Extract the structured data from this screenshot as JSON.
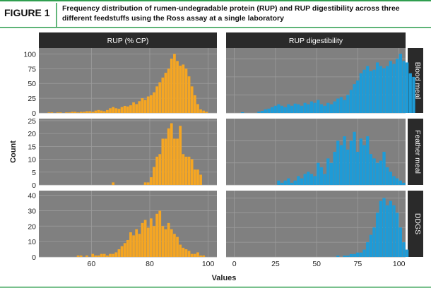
{
  "header": {
    "figure_label": "FIGURE 1",
    "caption_line1": "Frequency distribution of rumen-undegradable protein (RUP) and RUP digestibility across three",
    "caption_line2": "different feedstuffs using the Ross assay at a single laboratory"
  },
  "colors": {
    "accent_green": "#2f9e4f",
    "panel_bg": "#808080",
    "grid": "#9c9c9c",
    "strip_bg": "#2a2a2a",
    "strip_text": "#ffffff",
    "orange_bars": "#f5a623",
    "blue_bars": "#1e9bd7"
  },
  "chart_data": {
    "type": "bar",
    "facet_columns": [
      "RUP (% CP)",
      "RUP digestibility"
    ],
    "facet_rows": [
      "Blood meal",
      "Feather meal",
      "DDGS"
    ],
    "ylabel": "Count",
    "xlabel": "Values",
    "grid": true,
    "columns": [
      {
        "name": "RUP (% CP)",
        "color": "orange",
        "xlim": [
          42,
          103
        ],
        "xticks": [
          60,
          80,
          100
        ],
        "bin_start": 43,
        "bin_width": 1,
        "rows": [
          {
            "name": "Blood meal",
            "ylim": [
              0,
              110
            ],
            "yticks": [
              0,
              25,
              50,
              75,
              100
            ],
            "counts": [
              0,
              0,
              1,
              1,
              0,
              1,
              1,
              0,
              1,
              1,
              2,
              2,
              1,
              2,
              2,
              3,
              3,
              2,
              4,
              5,
              4,
              3,
              5,
              8,
              10,
              8,
              7,
              10,
              12,
              11,
              13,
              18,
              15,
              20,
              25,
              22,
              28,
              30,
              35,
              45,
              52,
              60,
              68,
              75,
              92,
              100,
              88,
              80,
              82,
              75,
              62,
              45,
              30,
              15,
              6,
              4,
              2,
              0,
              0,
              0
            ]
          },
          {
            "name": "Feather meal",
            "ylim": [
              0,
              25.8
            ],
            "yticks": [
              0,
              5,
              10,
              15,
              20,
              25
            ],
            "counts": [
              0,
              0,
              0,
              0,
              0,
              0,
              0,
              0,
              0,
              0,
              0,
              0,
              0,
              0,
              0,
              0,
              0,
              0,
              0,
              0,
              0,
              0,
              0,
              0,
              1,
              0,
              0,
              0,
              0,
              0,
              0,
              0,
              0,
              0,
              0,
              1,
              1,
              3,
              7,
              11,
              12,
              18,
              18,
              22,
              24,
              18,
              18,
              23,
              12,
              11,
              11,
              10,
              6,
              6,
              4,
              0,
              0,
              0,
              0,
              0
            ]
          },
          {
            "name": "DDGS",
            "ylim": [
              0,
              43
            ],
            "yticks": [
              0,
              10,
              20,
              30,
              40
            ],
            "counts": [
              0,
              0,
              0,
              0,
              0,
              0,
              0,
              0,
              0,
              0,
              0,
              0,
              1,
              1,
              0,
              1,
              0,
              2,
              1,
              1,
              2,
              2,
              1,
              2,
              2,
              3,
              5,
              7,
              9,
              11,
              16,
              14,
              18,
              15,
              22,
              24,
              19,
              25,
              20,
              28,
              30,
              20,
              18,
              22,
              18,
              15,
              13,
              8,
              6,
              5,
              4,
              2,
              2,
              3,
              1,
              1,
              0,
              0,
              0,
              0
            ]
          }
        ]
      },
      {
        "name": "RUP digestibility",
        "color": "blue",
        "xlim": [
          -5,
          104
        ],
        "xticks": [
          0,
          25,
          50,
          75,
          100
        ],
        "bin_start": 0,
        "bin_width": 2,
        "rows": [
          {
            "name": "Blood meal",
            "ylim": [
              0,
              90
            ],
            "yticks": [
              0,
              25,
              50,
              75
            ],
            "counts": [
              0,
              0,
              1,
              0,
              0,
              0,
              0,
              2,
              3,
              5,
              6,
              8,
              10,
              12,
              10,
              8,
              12,
              10,
              13,
              12,
              10,
              14,
              12,
              16,
              14,
              18,
              12,
              10,
              14,
              12,
              16,
              20,
              22,
              18,
              25,
              32,
              40,
              45,
              55,
              60,
              65,
              58,
              60,
              70,
              65,
              62,
              65,
              72,
              68,
              75,
              82,
              72,
              70,
              55,
              50
            ]
          },
          {
            "name": "Feather meal",
            "ylim": [
              0,
              30
            ],
            "yticks": [
              0,
              10,
              20
            ],
            "counts": [
              0,
              0,
              0,
              0,
              0,
              0,
              0,
              0,
              0,
              0,
              0,
              0,
              0,
              2,
              1,
              2,
              3,
              1,
              2,
              4,
              3,
              5,
              6,
              5,
              4,
              10,
              8,
              5,
              12,
              10,
              15,
              20,
              18,
              22,
              16,
              20,
              24,
              15,
              21,
              18,
              22,
              14,
              12,
              10,
              11,
              15,
              8,
              6,
              4,
              3,
              2,
              1,
              0,
              0,
              0
            ]
          },
          {
            "name": "DDGS",
            "ylim": [
              0,
              45
            ],
            "yticks": [
              0,
              10,
              20,
              30,
              40
            ],
            "counts": [
              0,
              0,
              0,
              0,
              0,
              0,
              0,
              0,
              0,
              0,
              0,
              0,
              0,
              0,
              0,
              0,
              0,
              0,
              0,
              0,
              0,
              0,
              0,
              0,
              0,
              0,
              0,
              0,
              0,
              0,
              0,
              1,
              0,
              1,
              1,
              2,
              2,
              3,
              3,
              5,
              10,
              15,
              20,
              30,
              38,
              40,
              35,
              38,
              35,
              30,
              20,
              10,
              5,
              0,
              0
            ]
          }
        ]
      }
    ]
  }
}
